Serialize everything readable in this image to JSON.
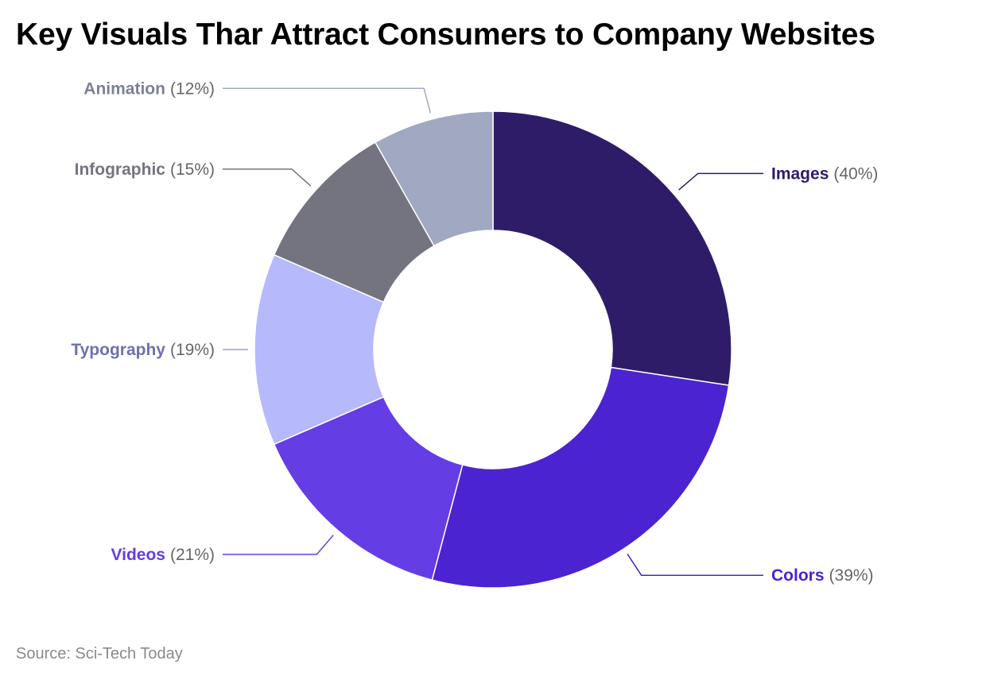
{
  "title": "Key Visuals Thar Attract Consumers to Company Websites",
  "source": "Source: Sci-Tech Today",
  "chart_data": {
    "type": "pie",
    "donut": true,
    "title": "Key Visuals Thar Attract Consumers to Company Websites",
    "legend": "none",
    "slices": [
      {
        "label": "Images",
        "value": 40,
        "value_label": "(40%)",
        "color": "#2f1c68"
      },
      {
        "label": "Colors",
        "value": 39,
        "value_label": "(39%)",
        "color": "#4c23d0"
      },
      {
        "label": "Videos",
        "value": 21,
        "value_label": "(21%)",
        "color": "#653de5"
      },
      {
        "label": "Typography",
        "value": 19,
        "value_label": "(19%)",
        "color": "#b7b9fd"
      },
      {
        "label": "Infographic",
        "value": 15,
        "value_label": "(15%)",
        "color": "#73747f"
      },
      {
        "label": "Animation",
        "value": 12,
        "value_label": "(12%)",
        "color": "#a1a8c1"
      }
    ],
    "label_colors": {
      "Images": "#2f1c68",
      "Colors": "#4c23d0",
      "Videos": "#653de5",
      "Typography": "#6e70b0",
      "Infographic": "#73747f",
      "Animation": "#7b8096"
    },
    "connector_colors": {
      "Images": "#2f1c68",
      "Colors": "#4c23d0",
      "Videos": "#653de5",
      "Typography": "#9b9dd8",
      "Infographic": "#73747f",
      "Animation": "#a1a8c1"
    }
  }
}
